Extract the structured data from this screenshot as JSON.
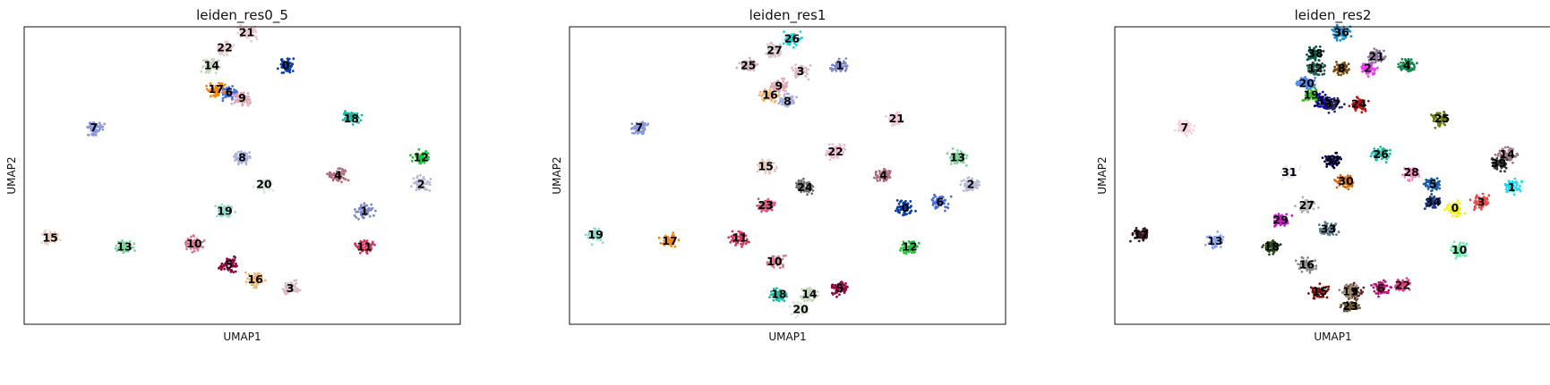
{
  "chart_data": [
    {
      "type": "scatter",
      "title": "leiden_res0_5",
      "xlabel": "UMAP1",
      "ylabel": "UMAP2",
      "grid": false,
      "clusters": [
        {
          "id": "0",
          "x": 0.6,
          "y": 0.87,
          "color": "#0a3ea6"
        },
        {
          "id": "1",
          "x": 0.78,
          "y": 0.38,
          "color": "#7b87c2"
        },
        {
          "id": "2",
          "x": 0.91,
          "y": 0.47,
          "color": "#b8bcd8"
        },
        {
          "id": "3",
          "x": 0.61,
          "y": 0.12,
          "color": "#d9bcc4"
        },
        {
          "id": "4",
          "x": 0.72,
          "y": 0.5,
          "color": "#b06c7c"
        },
        {
          "id": "5",
          "x": 0.47,
          "y": 0.2,
          "color": "#8c0a3c"
        },
        {
          "id": "6",
          "x": 0.47,
          "y": 0.78,
          "color": "#4a6fd8"
        },
        {
          "id": "7",
          "x": 0.16,
          "y": 0.66,
          "color": "#8a98dc"
        },
        {
          "id": "8",
          "x": 0.5,
          "y": 0.56,
          "color": "#a9b0e0"
        },
        {
          "id": "9",
          "x": 0.5,
          "y": 0.76,
          "color": "#e0a8b4"
        },
        {
          "id": "10",
          "x": 0.39,
          "y": 0.27,
          "color": "#d47a90"
        },
        {
          "id": "11",
          "x": 0.78,
          "y": 0.26,
          "color": "#d2385e"
        },
        {
          "id": "12",
          "x": 0.91,
          "y": 0.56,
          "color": "#1ec43c"
        },
        {
          "id": "13",
          "x": 0.23,
          "y": 0.26,
          "color": "#7ed39a"
        },
        {
          "id": "14",
          "x": 0.43,
          "y": 0.87,
          "color": "#c4d6bc"
        },
        {
          "id": "15",
          "x": 0.06,
          "y": 0.29,
          "color": "#f0d0c0"
        },
        {
          "id": "16",
          "x": 0.53,
          "y": 0.15,
          "color": "#f0b474"
        },
        {
          "id": "17",
          "x": 0.44,
          "y": 0.79,
          "color": "#f08a10"
        },
        {
          "id": "18",
          "x": 0.75,
          "y": 0.69,
          "color": "#19b8a4"
        },
        {
          "id": "19",
          "x": 0.46,
          "y": 0.38,
          "color": "#96dcd0"
        },
        {
          "id": "20",
          "x": 0.55,
          "y": 0.47,
          "color": "#d6e8d8"
        },
        {
          "id": "21",
          "x": 0.51,
          "y": 0.98,
          "color": "#f0c8cc"
        },
        {
          "id": "22",
          "x": 0.46,
          "y": 0.93,
          "color": "#eacbd0"
        }
      ]
    },
    {
      "type": "scatter",
      "title": "leiden_res1",
      "xlabel": "UMAP1",
      "ylabel": "UMAP2",
      "grid": false,
      "clusters": [
        {
          "id": "0",
          "x": 0.77,
          "y": 0.39,
          "color": "#0a3ea6"
        },
        {
          "id": "1",
          "x": 0.62,
          "y": 0.87,
          "color": "#7b87c2"
        },
        {
          "id": "2",
          "x": 0.92,
          "y": 0.47,
          "color": "#b8bcd8"
        },
        {
          "id": "3",
          "x": 0.53,
          "y": 0.85,
          "color": "#d9bcc4"
        },
        {
          "id": "4",
          "x": 0.72,
          "y": 0.5,
          "color": "#b06c7c"
        },
        {
          "id": "5",
          "x": 0.62,
          "y": 0.12,
          "color": "#8c0a3c"
        },
        {
          "id": "6",
          "x": 0.85,
          "y": 0.41,
          "color": "#4a6fd8"
        },
        {
          "id": "7",
          "x": 0.16,
          "y": 0.66,
          "color": "#8a98dc"
        },
        {
          "id": "8",
          "x": 0.5,
          "y": 0.75,
          "color": "#a9b0e0"
        },
        {
          "id": "9",
          "x": 0.48,
          "y": 0.8,
          "color": "#e0a8b4"
        },
        {
          "id": "10",
          "x": 0.47,
          "y": 0.21,
          "color": "#d47a90"
        },
        {
          "id": "11",
          "x": 0.39,
          "y": 0.29,
          "color": "#d2385e"
        },
        {
          "id": "12",
          "x": 0.78,
          "y": 0.26,
          "color": "#1ec43c"
        },
        {
          "id": "13",
          "x": 0.89,
          "y": 0.56,
          "color": "#7ed39a"
        },
        {
          "id": "14",
          "x": 0.55,
          "y": 0.1,
          "color": "#c4d6bc"
        },
        {
          "id": "15",
          "x": 0.45,
          "y": 0.53,
          "color": "#e8c8c0"
        },
        {
          "id": "16",
          "x": 0.46,
          "y": 0.77,
          "color": "#f0b474"
        },
        {
          "id": "17",
          "x": 0.23,
          "y": 0.28,
          "color": "#f08a10"
        },
        {
          "id": "18",
          "x": 0.48,
          "y": 0.1,
          "color": "#19b8a4"
        },
        {
          "id": "19",
          "x": 0.06,
          "y": 0.3,
          "color": "#96dcd0"
        },
        {
          "id": "20",
          "x": 0.53,
          "y": 0.05,
          "color": "#d6e8d8"
        },
        {
          "id": "21",
          "x": 0.75,
          "y": 0.69,
          "color": "#f0c8dc"
        },
        {
          "id": "22",
          "x": 0.61,
          "y": 0.58,
          "color": "#f0b8d0"
        },
        {
          "id": "23",
          "x": 0.45,
          "y": 0.4,
          "color": "#d6587a"
        },
        {
          "id": "24",
          "x": 0.54,
          "y": 0.46,
          "color": "#6e6e6e"
        },
        {
          "id": "25",
          "x": 0.41,
          "y": 0.87,
          "color": "#d4b4bc"
        },
        {
          "id": "26",
          "x": 0.51,
          "y": 0.96,
          "color": "#19d6d6"
        },
        {
          "id": "27",
          "x": 0.47,
          "y": 0.92,
          "color": "#d8c4cc"
        }
      ]
    },
    {
      "type": "scatter",
      "title": "leiden_res2",
      "xlabel": "UMAP1",
      "ylabel": "UMAP2",
      "grid": false,
      "clusters": [
        {
          "id": "0",
          "x": 0.78,
          "y": 0.39,
          "color": "#f2f20a"
        },
        {
          "id": "1",
          "x": 0.91,
          "y": 0.46,
          "color": "#1ed8f0"
        },
        {
          "id": "2",
          "x": 0.58,
          "y": 0.86,
          "color": "#f03cf0"
        },
        {
          "id": "3",
          "x": 0.84,
          "y": 0.41,
          "color": "#f04848"
        },
        {
          "id": "4",
          "x": 0.67,
          "y": 0.87,
          "color": "#14874a"
        },
        {
          "id": "5",
          "x": 0.73,
          "y": 0.47,
          "color": "#1a5ea8"
        },
        {
          "id": "6",
          "x": 0.61,
          "y": 0.12,
          "color": "#b8106e"
        },
        {
          "id": "7",
          "x": 0.16,
          "y": 0.66,
          "color": "#f8d0dc"
        },
        {
          "id": "8",
          "x": 0.52,
          "y": 0.86,
          "color": "#7a4a10"
        },
        {
          "id": "9",
          "x": 0.55,
          "y": 0.11,
          "color": "#5e2a2a"
        },
        {
          "id": "10",
          "x": 0.79,
          "y": 0.25,
          "color": "#6ef0b0"
        },
        {
          "id": "11",
          "x": 0.54,
          "y": 0.11,
          "color": "#a08a6a"
        },
        {
          "id": "12",
          "x": 0.46,
          "y": 0.86,
          "color": "#1e5a4a"
        },
        {
          "id": "13",
          "x": 0.23,
          "y": 0.28,
          "color": "#8aa8f0"
        },
        {
          "id": "14",
          "x": 0.9,
          "y": 0.57,
          "color": "#a07a8a"
        },
        {
          "id": "15",
          "x": 0.47,
          "y": 0.11,
          "color": "#7a1010"
        },
        {
          "id": "16",
          "x": 0.44,
          "y": 0.2,
          "color": "#8a8a8a"
        },
        {
          "id": "17",
          "x": 0.06,
          "y": 0.3,
          "color": "#3a1a2a"
        },
        {
          "id": "18",
          "x": 0.36,
          "y": 0.26,
          "color": "#2a4a1a"
        },
        {
          "id": "19",
          "x": 0.45,
          "y": 0.77,
          "color": "#3ac01a"
        },
        {
          "id": "20",
          "x": 0.44,
          "y": 0.81,
          "color": "#4a8af0"
        },
        {
          "id": "21",
          "x": 0.6,
          "y": 0.9,
          "color": "#8a7a9a"
        },
        {
          "id": "22",
          "x": 0.66,
          "y": 0.13,
          "color": "#e83a8a"
        },
        {
          "id": "23",
          "x": 0.54,
          "y": 0.06,
          "color": "#6a5a3a"
        },
        {
          "id": "24",
          "x": 0.56,
          "y": 0.74,
          "color": "#c01010"
        },
        {
          "id": "25",
          "x": 0.75,
          "y": 0.69,
          "color": "#6a7a10"
        },
        {
          "id": "26",
          "x": 0.61,
          "y": 0.57,
          "color": "#1ab8a4"
        },
        {
          "id": "27",
          "x": 0.44,
          "y": 0.4,
          "color": "#b0b0b0"
        },
        {
          "id": "28",
          "x": 0.68,
          "y": 0.51,
          "color": "#f08ac0"
        },
        {
          "id": "29",
          "x": 0.38,
          "y": 0.35,
          "color": "#c818c8"
        },
        {
          "id": "30",
          "x": 0.53,
          "y": 0.48,
          "color": "#d06a10"
        },
        {
          "id": "31",
          "x": 0.4,
          "y": 0.51,
          "color": "#e8e8f0"
        },
        {
          "id": "32",
          "x": 0.5,
          "y": 0.55,
          "color": "#0a0a4a"
        },
        {
          "id": "33",
          "x": 0.49,
          "y": 0.32,
          "color": "#5a7a8a"
        },
        {
          "id": "34",
          "x": 0.73,
          "y": 0.41,
          "color": "#1a3a8a"
        },
        {
          "id": "35",
          "x": 0.48,
          "y": 0.75,
          "color": "#0a0aa8"
        },
        {
          "id": "36",
          "x": 0.52,
          "y": 0.98,
          "color": "#1a8ac8"
        },
        {
          "id": "37",
          "x": 0.5,
          "y": 0.74,
          "color": "#2a2a6a"
        },
        {
          "id": "38",
          "x": 0.46,
          "y": 0.91,
          "color": "#0a5a4a"
        },
        {
          "id": "39",
          "x": 0.88,
          "y": 0.54,
          "color": "#3a3a3a"
        }
      ]
    }
  ]
}
